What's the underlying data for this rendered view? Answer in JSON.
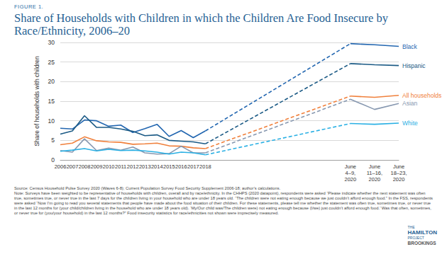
{
  "chart_data": {
    "type": "line",
    "figure_label": "FIGURE 1.",
    "title": "Share of Households with Children in which the Children Are Food Insecure by Race/Ethnicity, 2006–20",
    "ylabel": "Share of households with children",
    "categories": [
      "2006",
      "2007",
      "2008",
      "2009",
      "2010",
      "2011",
      "2012",
      "2013",
      "2014",
      "2015",
      "2016",
      "2017",
      "2018",
      null,
      null,
      null,
      null,
      null,
      null,
      null,
      null,
      null,
      null,
      null,
      "June\n4–9,\n2020",
      null,
      "June\n11–16,\n2020",
      null,
      "June\n18–23,\n2020"
    ],
    "series": [
      {
        "name": "Black",
        "color": "#2266b0",
        "values": [
          8.1,
          7.9,
          10.2,
          10.0,
          8.6,
          8.9,
          7.0,
          8.0,
          9.1,
          6.0,
          7.5,
          5.7,
          7.4,
          null,
          null,
          null,
          null,
          null,
          null,
          null,
          null,
          null,
          null,
          null,
          29.7,
          null,
          29.4,
          null,
          29.0
        ]
      },
      {
        "name": "Hispanic",
        "color": "#1b5a85",
        "values": [
          6.6,
          7.4,
          11.3,
          8.3,
          8.3,
          7.9,
          7.3,
          6.2,
          6.4,
          5.0,
          4.8,
          4.6,
          4.1,
          null,
          null,
          null,
          null,
          null,
          null,
          null,
          null,
          null,
          null,
          null,
          24.6,
          null,
          24.3,
          null,
          24.1
        ]
      },
      {
        "name": "All households",
        "color": "#f0803c",
        "values": [
          3.9,
          4.3,
          5.9,
          4.9,
          4.6,
          4.5,
          4.0,
          4.1,
          4.3,
          3.6,
          3.5,
          3.1,
          2.9,
          null,
          null,
          null,
          null,
          null,
          null,
          null,
          null,
          null,
          null,
          null,
          16.3,
          null,
          16.0,
          null,
          16.5
        ]
      },
      {
        "name": "Asian",
        "color": "#8798b0",
        "values": [
          2.4,
          2.0,
          5.4,
          2.4,
          3.0,
          2.5,
          3.3,
          1.8,
          1.5,
          1.6,
          3.5,
          1.8,
          1.8,
          null,
          null,
          null,
          null,
          null,
          null,
          null,
          null,
          null,
          null,
          null,
          15.5,
          null,
          12.9,
          null,
          14.4
        ]
      },
      {
        "name": "White",
        "color": "#2ab0e4",
        "values": [
          2.2,
          2.5,
          2.9,
          2.3,
          2.7,
          2.4,
          2.5,
          2.3,
          2.0,
          1.5,
          2.0,
          1.8,
          1.3,
          null,
          null,
          null,
          null,
          null,
          null,
          null,
          null,
          null,
          null,
          null,
          9.3,
          null,
          9.1,
          null,
          9.4
        ]
      }
    ],
    "ylim": [
      0,
      30
    ],
    "yticks": [
      0,
      5,
      10,
      15,
      20,
      25,
      30
    ],
    "grid": true,
    "source": "Source: Census Household Pulse Survey 2020 (Waves 6-8); Current Population Survey Food Security Supplement 2006-18; author’s calculations.",
    "note": "Note: Surveys have been weighted to be representative of households with children, overall and by race/ethnicity. In the CHHPS (2020 datapoint), respondents were asked “Please indicate whether the next statement was often true, sometimes true, or never true in the last 7 days for the children living in your household who are under 18 years old. “The children were not eating enough because we just couldn’t afford enough food.” In the FSS, respondents were asked “Now I’m going to read you several statements that people have made about the food situation of their children. For these statements, please tell me whether the statement was often true, sometimes true, or never true in the last 12 months for (your child/children living in the household who are under 18 years old). ‘My/Our child was/The children were) not eating enough because (I/we) just couldn’t afford enough food.’ Was that often, sometimes, or never true for (you/your household) in the last 12 months?” Food insecurity statistics for race/ethnicities not shown were imprecisely measured.",
    "branding": [
      "THE",
      "HAMILTON",
      "PROJECT",
      "BROOKINGS"
    ]
  }
}
